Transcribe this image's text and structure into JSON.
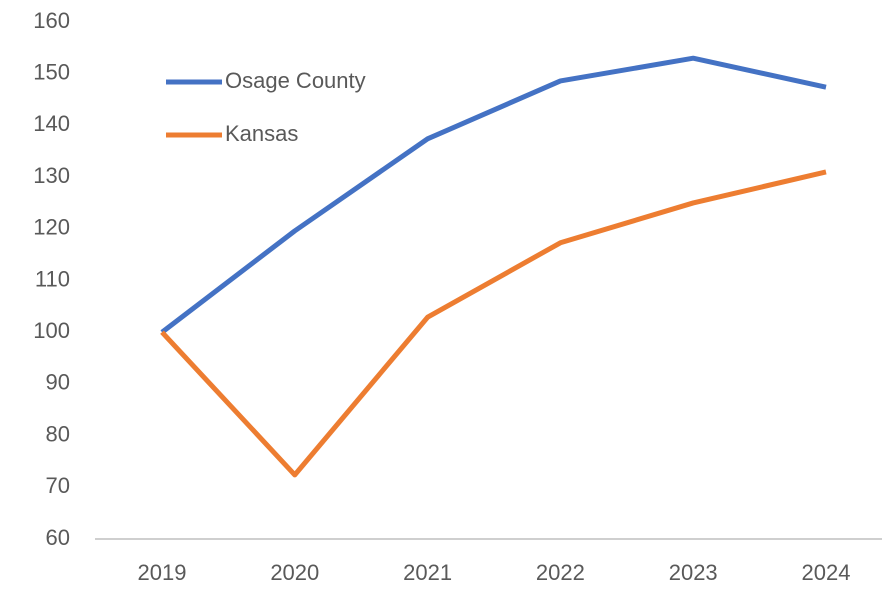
{
  "chart_data": {
    "type": "line",
    "categories": [
      "2019",
      "2020",
      "2021",
      "2022",
      "2023",
      "2024"
    ],
    "series": [
      {
        "name": "Osage County",
        "color": "#4472c4",
        "values": [
          100,
          119.6,
          137.4,
          148.6,
          153,
          147.4
        ]
      },
      {
        "name": "Kansas",
        "color": "#ed7d31",
        "values": [
          100,
          72.4,
          102.9,
          117.3,
          125,
          131
        ]
      }
    ],
    "ylim": [
      60,
      160
    ],
    "yticks": [
      60,
      70,
      80,
      90,
      100,
      110,
      120,
      130,
      140,
      150,
      160
    ],
    "grid": false,
    "legend": "upper left"
  }
}
